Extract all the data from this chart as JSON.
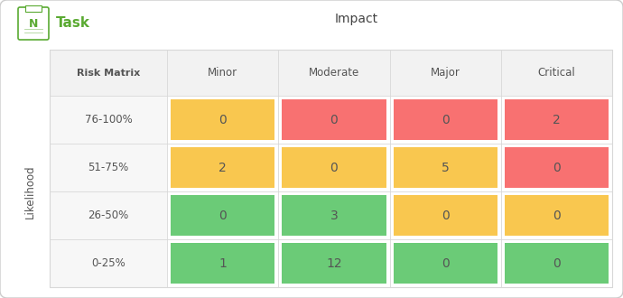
{
  "title": "Impact",
  "row_label": "Likelihood",
  "col_header_label": "Risk Matrix",
  "col_headers": [
    "Minor",
    "Moderate",
    "Major",
    "Critical"
  ],
  "row_headers": [
    "76-100%",
    "51-75%",
    "26-50%",
    "0-25%"
  ],
  "values": [
    [
      0,
      0,
      0,
      2
    ],
    [
      2,
      0,
      5,
      0
    ],
    [
      0,
      3,
      0,
      0
    ],
    [
      1,
      12,
      0,
      0
    ]
  ],
  "colors": [
    [
      "#F9C74F",
      "#F87171",
      "#F87171",
      "#F87171"
    ],
    [
      "#F9C74F",
      "#F9C74F",
      "#F9C74F",
      "#F87171"
    ],
    [
      "#6BCB77",
      "#6BCB77",
      "#F9C74F",
      "#F9C74F"
    ],
    [
      "#6BCB77",
      "#6BCB77",
      "#6BCB77",
      "#6BCB77"
    ]
  ],
  "background_color": "#ffffff",
  "header_bg": "#f2f2f2",
  "row_bg": "#f7f7f7",
  "border_color": "#d8d8d8",
  "text_color": "#555555",
  "cell_text_color": "#555555",
  "title_color": "#444444",
  "logo_green": "#5aaa32",
  "logo_text": "Task",
  "fig_width": 6.9,
  "fig_height": 3.3,
  "dpi": 100
}
